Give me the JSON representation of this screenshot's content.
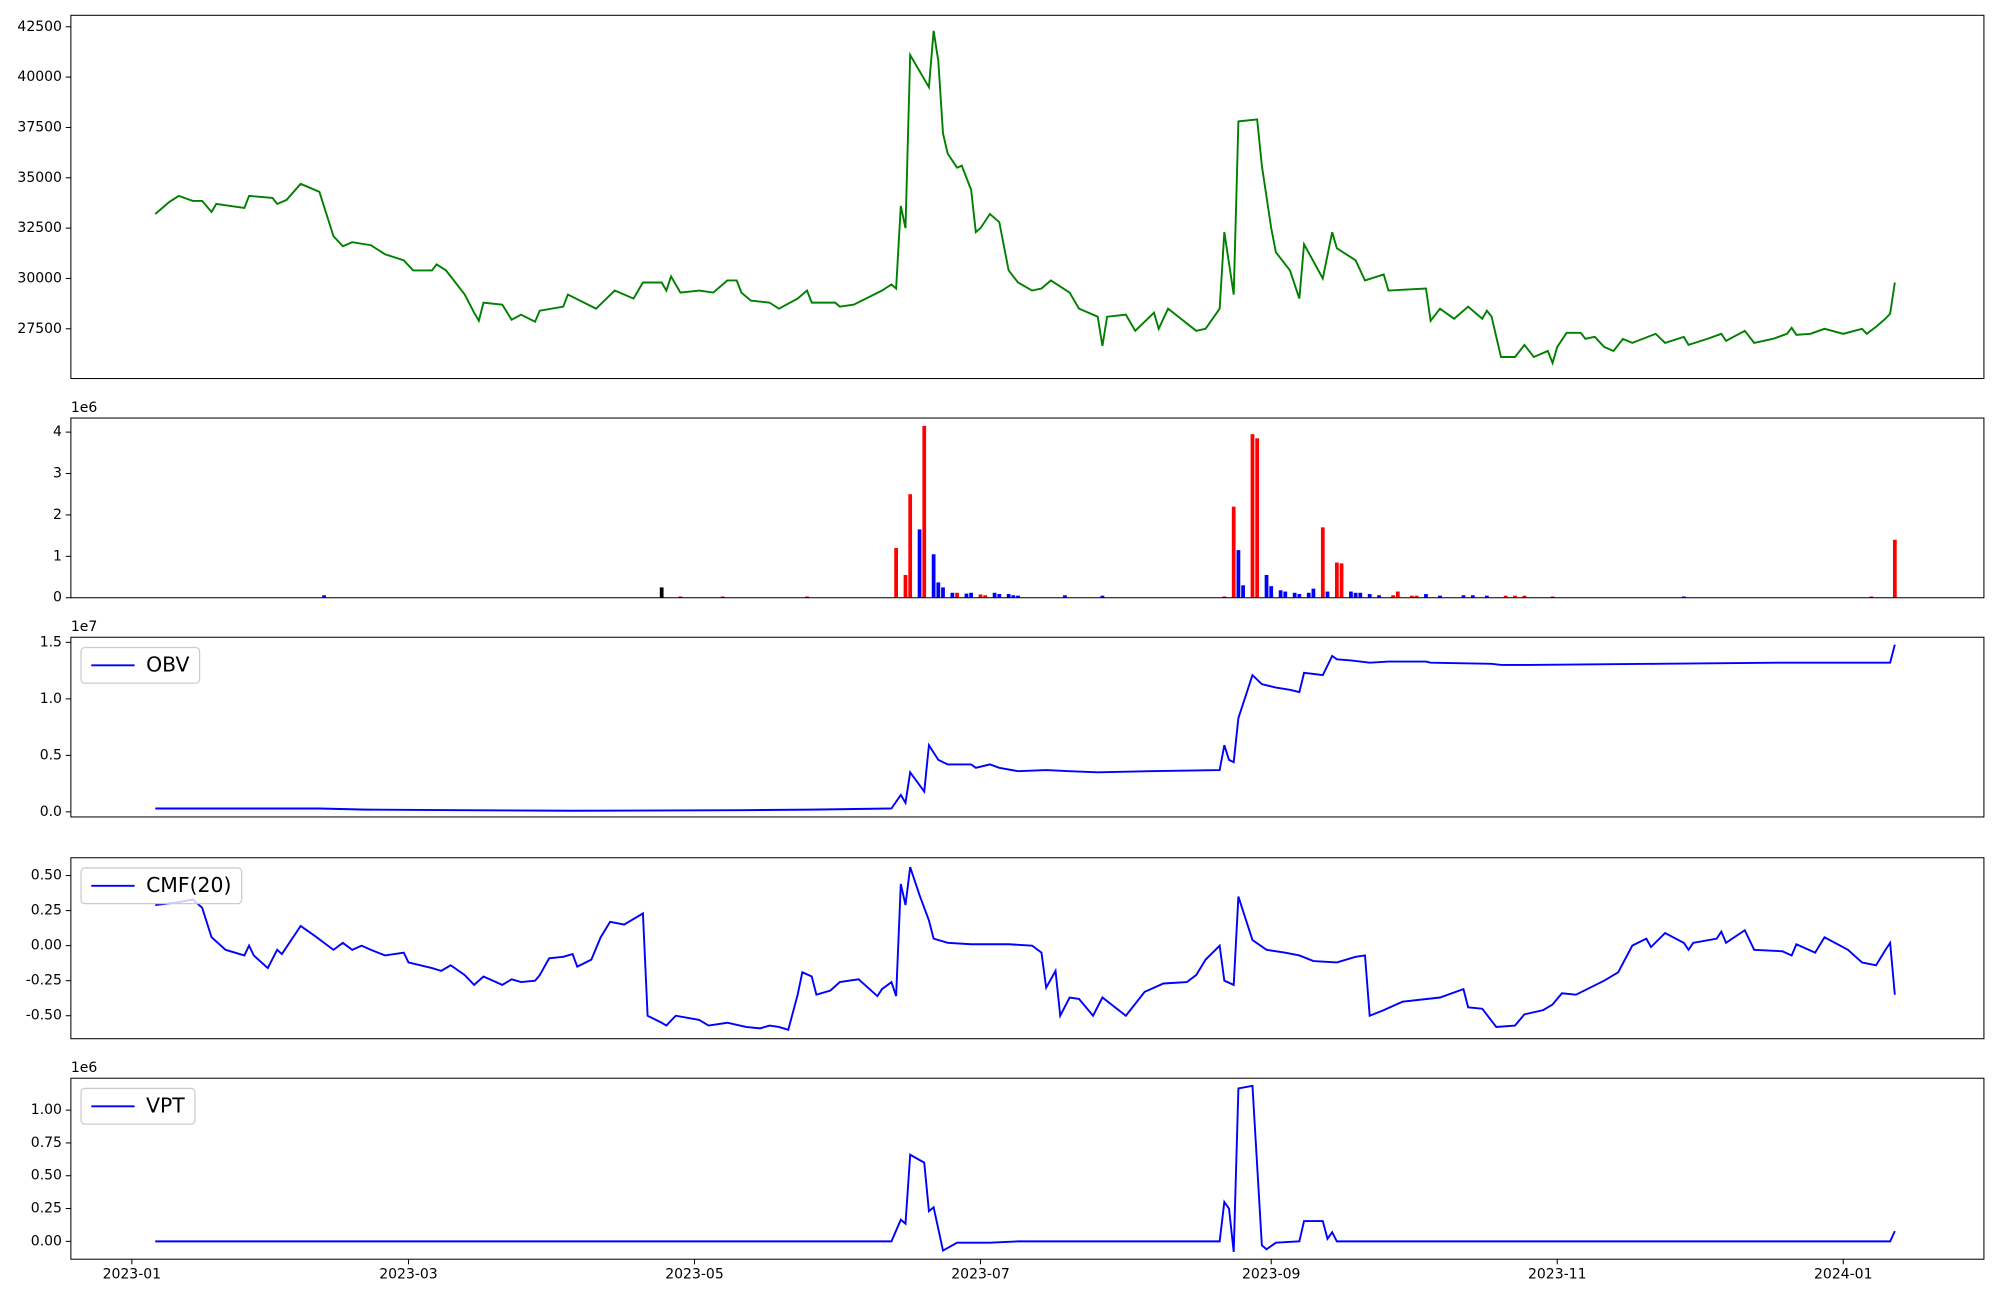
{
  "chart_data": [
    {
      "type": "line",
      "color": "#008000",
      "xlim": [
        -13,
        395
      ],
      "ylim": [
        25030,
        43070
      ],
      "yticks": [
        27500,
        30000,
        32500,
        35000,
        37500,
        40000,
        42500
      ],
      "x": [
        5,
        8,
        10,
        13,
        15,
        17,
        18,
        24,
        25,
        30,
        31,
        33,
        36,
        40,
        43,
        45,
        47,
        51,
        54,
        58,
        60,
        64,
        65,
        67,
        71,
        73,
        74,
        75,
        79,
        81,
        83,
        86,
        87,
        92,
        93,
        99,
        103,
        107,
        109,
        113,
        114,
        115,
        117,
        121,
        124,
        127,
        129,
        130,
        132,
        136,
        138,
        142,
        144,
        145,
        150,
        151,
        154,
        160,
        162,
        163,
        164,
        165,
        166,
        170,
        171,
        172,
        173,
        174,
        176,
        177,
        179,
        180,
        181,
        183,
        185,
        187,
        189,
        192,
        194,
        196,
        200,
        202,
        206,
        207,
        208,
        212,
        214,
        218,
        219,
        221,
        227,
        229,
        232,
        233,
        235,
        236,
        240,
        241,
        243,
        244,
        247,
        249,
        250,
        254,
        256,
        257,
        261,
        263,
        267,
        268,
        276,
        277,
        279,
        282,
        285,
        288,
        289,
        290,
        292,
        295,
        297,
        299,
        302,
        303,
        304,
        306,
        309,
        310,
        312,
        314,
        316,
        318,
        320,
        325,
        327,
        331,
        332,
        336,
        339,
        340,
        344,
        346,
        350,
        353,
        354,
        355,
        358,
        361,
        365,
        369,
        370,
        372,
        374,
        375,
        376
      ],
      "values": [
        33200,
        33800,
        34100,
        33850,
        33850,
        33300,
        33700,
        33500,
        34100,
        34000,
        33700,
        33900,
        34700,
        34300,
        32100,
        31600,
        31800,
        31650,
        31200,
        30900,
        30400,
        30400,
        30700,
        30400,
        29200,
        28300,
        27900,
        28800,
        28700,
        27950,
        28200,
        27850,
        28400,
        28600,
        29200,
        28500,
        29400,
        29000,
        29800,
        29800,
        29400,
        30100,
        29300,
        29400,
        29300,
        29900,
        29900,
        29300,
        28900,
        28800,
        28500,
        29000,
        29400,
        28800,
        28800,
        28600,
        28700,
        29400,
        29700,
        29500,
        33600,
        32500,
        41100,
        39500,
        42300,
        40800,
        37200,
        36200,
        35500,
        35600,
        34400,
        32300,
        32500,
        33200,
        32800,
        30400,
        29800,
        29400,
        29500,
        29900,
        29300,
        28500,
        28100,
        26650,
        28100,
        28200,
        27400,
        28300,
        27500,
        28500,
        27400,
        27500,
        28500,
        32300,
        29200,
        37800,
        37900,
        35600,
        32500,
        31300,
        30400,
        29000,
        31700,
        30000,
        32300,
        31500,
        30900,
        29900,
        30200,
        29400,
        29500,
        27900,
        28500,
        28000,
        28600,
        28000,
        28400,
        28100,
        26100,
        26100,
        26700,
        26100,
        26400,
        25800,
        26600,
        27300,
        27300,
        27000,
        27100,
        26600,
        26400,
        27000,
        26800,
        27250,
        26800,
        27100,
        26700,
        27000,
        27250,
        26900,
        27400,
        26800,
        27000,
        27250,
        27550,
        27200,
        27250,
        27500,
        27250,
        27500,
        27250,
        27600,
        28000,
        28250,
        29800
      ]
    },
    {
      "type": "bar",
      "xlim": [
        -13,
        395
      ],
      "ylim": [
        0,
        4340000
      ],
      "offset_label": "1e6",
      "yticks": [
        0,
        {
          "value": 1000000,
          "label": "1"
        },
        {
          "value": 2000000,
          "label": "2"
        },
        {
          "value": 3000000,
          "label": "3"
        },
        {
          "value": 4000000,
          "label": "4"
        }
      ],
      "x": [
        41,
        113,
        117,
        126,
        144,
        163,
        165,
        166,
        168,
        169,
        171,
        172,
        173,
        175,
        176,
        178,
        179,
        181,
        182,
        184,
        185,
        187,
        188,
        189,
        199,
        207,
        233,
        235,
        236,
        237,
        239,
        240,
        242,
        243,
        245,
        246,
        248,
        249,
        251,
        252,
        254,
        255,
        257,
        258,
        260,
        261,
        262,
        264,
        266,
        269,
        270,
        273,
        274,
        276,
        279,
        284,
        286,
        289,
        293,
        295,
        297,
        303,
        331,
        371,
        376
      ],
      "values": [
        60000,
        250000,
        30000,
        30000,
        30000,
        1200000,
        550000,
        2500000,
        1650000,
        4150000,
        1050000,
        370000,
        250000,
        120000,
        120000,
        100000,
        120000,
        80000,
        60000,
        120000,
        90000,
        90000,
        60000,
        50000,
        60000,
        50000,
        30000,
        2200000,
        1150000,
        300000,
        3950000,
        3850000,
        550000,
        280000,
        180000,
        150000,
        120000,
        90000,
        120000,
        220000,
        1700000,
        150000,
        850000,
        830000,
        150000,
        120000,
        120000,
        90000,
        60000,
        60000,
        150000,
        50000,
        50000,
        90000,
        50000,
        60000,
        60000,
        50000,
        50000,
        50000,
        50000,
        30000,
        30000,
        30000,
        1400000
      ],
      "colors": [
        "#0000ff",
        "#000000",
        "#ff0000",
        "#ff0000",
        "#ff0000",
        "#ff0000",
        "#ff0000",
        "#ff0000",
        "#0000ff",
        "#ff0000",
        "#0000ff",
        "#0000ff",
        "#0000ff",
        "#0000ff",
        "#ff0000",
        "#0000ff",
        "#0000ff",
        "#ff0000",
        "#ff0000",
        "#0000ff",
        "#0000ff",
        "#0000ff",
        "#0000ff",
        "#0000ff",
        "#0000ff",
        "#0000ff",
        "#ff0000",
        "#ff0000",
        "#0000ff",
        "#0000ff",
        "#ff0000",
        "#ff0000",
        "#0000ff",
        "#0000ff",
        "#0000ff",
        "#0000ff",
        "#0000ff",
        "#0000ff",
        "#0000ff",
        "#0000ff",
        "#ff0000",
        "#0000ff",
        "#ff0000",
        "#ff0000",
        "#0000ff",
        "#0000ff",
        "#0000ff",
        "#0000ff",
        "#0000ff",
        "#ff0000",
        "#ff0000",
        "#ff0000",
        "#ff0000",
        "#0000ff",
        "#0000ff",
        "#0000ff",
        "#0000ff",
        "#0000ff",
        "#ff0000",
        "#ff0000",
        "#ff0000",
        "#ff0000",
        "#0000ff",
        "#ff0000",
        "#ff0000"
      ]
    },
    {
      "type": "line",
      "xlim": [
        -13,
        395
      ],
      "ylim": [
        -450000,
        15450000
      ],
      "offset_label": "1e7",
      "legend": "upper left",
      "yticks": [
        {
          "value": 0,
          "label": "0.0"
        },
        {
          "value": 5000000,
          "label": "0.5"
        },
        {
          "value": 10000000,
          "label": "1.0"
        },
        {
          "value": 15000000,
          "label": "1.5"
        }
      ],
      "x": [
        5,
        40,
        50,
        70,
        94,
        130,
        145,
        162,
        164,
        165,
        166,
        169,
        170,
        172,
        174,
        179,
        180,
        183,
        185,
        189,
        195,
        200,
        206,
        217,
        232,
        233,
        234,
        235,
        236,
        239,
        241,
        244,
        247,
        249,
        250,
        254,
        256,
        257,
        260,
        264,
        268,
        276,
        277,
        290,
        292,
        298,
        325,
        352,
        375,
        376
      ],
      "series": [
        {
          "name": "OBV",
          "color": "#0000ff",
          "values": [
            300000,
            300000,
            200000,
            150000,
            100000,
            150000,
            200000,
            300000,
            1500000,
            800000,
            3500000,
            1800000,
            5900000,
            4600000,
            4200000,
            4200000,
            3900000,
            4200000,
            3900000,
            3600000,
            3700000,
            3600000,
            3500000,
            3600000,
            3700000,
            5900000,
            4600000,
            4400000,
            8300000,
            12100000,
            11300000,
            11000000,
            10800000,
            10600000,
            12300000,
            12100000,
            13800000,
            13500000,
            13400000,
            13200000,
            13300000,
            13300000,
            13200000,
            13100000,
            13000000,
            13000000,
            13100000,
            13200000,
            13200000,
            14800000
          ]
        }
      ]
    },
    {
      "type": "line",
      "xlim": [
        -13,
        395
      ],
      "ylim": [
        -0.664,
        0.627
      ],
      "legend": "upper left",
      "yticks": [
        {
          "value": -0.5,
          "label": "-0.50"
        },
        -0.25,
        {
          "value": 0,
          "label": "0.00"
        },
        0.25,
        {
          "value": 0.5,
          "label": "0.50"
        }
      ],
      "x": [
        5,
        10,
        13,
        15,
        17,
        20,
        24,
        25,
        26,
        29,
        31,
        32,
        36,
        39,
        43,
        45,
        47,
        49,
        51,
        54,
        58,
        59,
        64,
        66,
        68,
        71,
        73,
        75,
        79,
        81,
        83,
        86,
        87,
        89,
        92,
        94,
        95,
        98,
        100,
        102,
        105,
        109,
        110,
        113,
        114,
        116,
        121,
        123,
        127,
        131,
        134,
        136,
        138,
        140,
        142,
        143,
        145,
        146,
        149,
        151,
        155,
        157,
        159,
        160,
        162,
        163,
        164,
        165,
        166,
        168,
        170,
        171,
        174,
        179,
        187,
        192,
        194,
        195,
        197,
        198,
        200,
        202,
        205,
        207,
        212,
        216,
        220,
        225,
        227,
        229,
        232,
        233,
        235,
        236,
        239,
        242,
        246,
        249,
        252,
        257,
        261,
        263,
        264,
        267,
        271,
        279,
        284,
        285,
        288,
        291,
        295,
        297,
        301,
        303,
        305,
        308,
        314,
        317,
        320,
        323,
        324,
        327,
        331,
        332,
        333,
        338,
        339,
        340,
        344,
        346,
        352,
        354,
        355,
        359,
        361,
        366,
        369,
        372,
        374,
        375,
        376
      ],
      "series": [
        {
          "name": "CMF(20)",
          "color": "#0000ff",
          "values": [
            0.29,
            0.31,
            0.33,
            0.27,
            0.06,
            -0.03,
            -0.07,
            0,
            -0.07,
            -0.16,
            -0.03,
            -0.06,
            0.14,
            0.07,
            -0.03,
            0.02,
            -0.03,
            0,
            -0.03,
            -0.07,
            -0.05,
            -0.12,
            -0.16,
            -0.18,
            -0.14,
            -0.21,
            -0.28,
            -0.22,
            -0.28,
            -0.24,
            -0.26,
            -0.25,
            -0.21,
            -0.09,
            -0.08,
            -0.06,
            -0.15,
            -0.1,
            0.06,
            0.17,
            0.15,
            0.23,
            -0.5,
            -0.55,
            -0.57,
            -0.5,
            -0.53,
            -0.57,
            -0.55,
            -0.58,
            -0.59,
            -0.57,
            -0.58,
            -0.6,
            -0.35,
            -0.19,
            -0.22,
            -0.35,
            -0.32,
            -0.26,
            -0.24,
            -0.3,
            -0.36,
            -0.31,
            -0.26,
            -0.36,
            0.44,
            0.29,
            0.56,
            0.36,
            0.18,
            0.05,
            0.02,
            0.01,
            0.01,
            0,
            -0.05,
            -0.3,
            -0.18,
            -0.5,
            -0.37,
            -0.38,
            -0.5,
            -0.37,
            -0.5,
            -0.33,
            -0.27,
            -0.26,
            -0.21,
            -0.1,
            0,
            -0.25,
            -0.28,
            0.35,
            0.04,
            -0.03,
            -0.05,
            -0.07,
            -0.11,
            -0.12,
            -0.08,
            -0.07,
            -0.5,
            -0.46,
            -0.4,
            -0.37,
            -0.31,
            -0.44,
            -0.45,
            -0.58,
            -0.57,
            -0.49,
            -0.46,
            -0.42,
            -0.34,
            -0.35,
            -0.25,
            -0.19,
            0,
            0.05,
            -0.01,
            0.09,
            0.02,
            -0.03,
            0.02,
            0.05,
            0.1,
            0.02,
            0.11,
            -0.03,
            -0.04,
            -0.07,
            0.01,
            -0.05,
            0.06,
            -0.03,
            -0.12,
            -0.14,
            -0.03,
            0.02,
            -0.35
          ]
        }
      ]
    },
    {
      "type": "line",
      "xlim": [
        -13,
        395
      ],
      "ylim": [
        -136000,
        1243000
      ],
      "offset_label": "1e6",
      "legend": "upper left",
      "yticks": [
        {
          "value": 0,
          "label": "0.00"
        },
        {
          "value": 250000,
          "label": "0.25"
        },
        {
          "value": 500000,
          "label": "0.50"
        },
        {
          "value": 750000,
          "label": "0.75"
        },
        {
          "value": 1000000,
          "label": "1.00"
        }
      ],
      "xticks": [
        {
          "value": 0,
          "label": "2023-01"
        },
        {
          "value": 59,
          "label": "2023-03"
        },
        {
          "value": 120,
          "label": "2023-05"
        },
        {
          "value": 181,
          "label": "2023-07"
        },
        {
          "value": 243,
          "label": "2023-09"
        },
        {
          "value": 304,
          "label": "2023-11"
        },
        {
          "value": 365,
          "label": "2024-01"
        }
      ],
      "x": [
        5,
        81,
        162,
        164,
        165,
        166,
        169,
        170,
        171,
        173,
        176,
        183,
        189,
        232,
        233,
        234,
        235,
        236,
        239,
        241,
        242,
        244,
        249,
        250,
        254,
        255,
        256,
        257,
        375,
        376
      ],
      "series": [
        {
          "name": "VPT",
          "color": "#0000ff",
          "values": [
            0,
            0,
            0,
            165000,
            135000,
            660000,
            600000,
            230000,
            260000,
            -70000,
            -10000,
            -10000,
            0,
            0,
            300000,
            250000,
            -80000,
            1165000,
            1185000,
            -30000,
            -60000,
            -10000,
            0,
            155000,
            155000,
            20000,
            70000,
            0,
            0,
            78000
          ]
        }
      ]
    }
  ]
}
